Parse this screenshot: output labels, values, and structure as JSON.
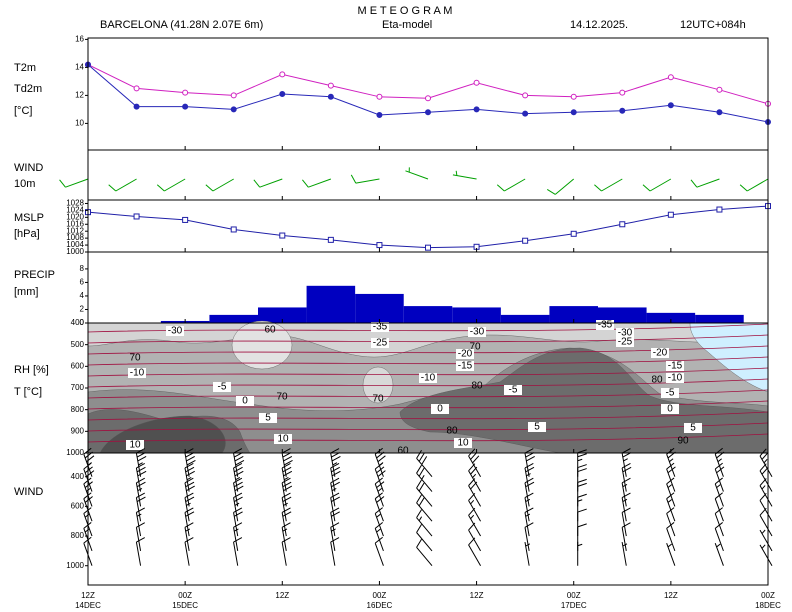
{
  "header": {
    "title": "M E T E O G R A M",
    "station": "BARCELONA (41.28N 2.07E  6m)",
    "model": "Eta-model",
    "date": "14.12.2025.",
    "run": "12UTC+084h"
  },
  "time_axis": {
    "xlim": [
      0,
      84
    ],
    "xticks": [
      {
        "value": 0,
        "label": "12Z"
      },
      {
        "value": 12,
        "label": "00Z"
      },
      {
        "value": 24,
        "label": "12Z"
      },
      {
        "value": 36,
        "label": "00Z"
      },
      {
        "value": 48,
        "label": "12Z"
      },
      {
        "value": 60,
        "label": "00Z"
      },
      {
        "value": 72,
        "label": "12Z"
      },
      {
        "value": 84,
        "label": "00Z"
      }
    ],
    "dates": [
      "14DEC",
      "15DEC",
      null,
      "16DEC",
      null,
      "17DEC",
      null,
      "18DEC"
    ]
  },
  "chart_data": [
    {
      "type": "line",
      "unit": "[°C]",
      "x": [
        0,
        6,
        12,
        18,
        24,
        30,
        36,
        42,
        48,
        54,
        60,
        66,
        72,
        78,
        84
      ],
      "series": [
        {
          "name": "T2m",
          "color": "#d020c0",
          "marker": "circle-open",
          "values": [
            14.2,
            12.5,
            12.2,
            12.0,
            13.5,
            12.7,
            11.9,
            11.8,
            12.9,
            12.0,
            11.9,
            12.2,
            13.3,
            12.4,
            11.4
          ]
        },
        {
          "name": "Td2m",
          "color": "#2828b8",
          "marker": "circle",
          "values": [
            14.2,
            11.2,
            11.2,
            11.0,
            12.1,
            11.9,
            10.6,
            10.8,
            11.0,
            10.7,
            10.8,
            10.9,
            11.3,
            10.8,
            10.1
          ]
        }
      ],
      "ylim": [
        8.1,
        16.1
      ],
      "yticks": [
        10,
        12,
        14,
        16
      ]
    },
    {
      "type": "barbs",
      "title": "WIND",
      "subtitle": "10m",
      "color": "#00a000",
      "x": [
        0,
        6,
        12,
        18,
        24,
        30,
        36,
        42,
        48,
        54,
        60,
        66,
        72,
        78,
        84
      ],
      "direction": [
        250,
        240,
        240,
        240,
        250,
        250,
        260,
        290,
        280,
        240,
        230,
        240,
        240,
        250,
        240
      ],
      "speed": [
        10,
        10,
        10,
        10,
        10,
        10,
        10,
        5,
        5,
        10,
        10,
        10,
        10,
        10,
        10
      ]
    },
    {
      "type": "line",
      "unit": "[hPa]",
      "x": [
        0,
        6,
        12,
        18,
        24,
        30,
        36,
        42,
        48,
        54,
        60,
        66,
        72,
        78,
        84
      ],
      "series": [
        {
          "name": "MSLP",
          "color": "#2020a8",
          "marker": "square-open",
          "values": [
            1023,
            1020.5,
            1018.5,
            1013,
            1009.5,
            1007,
            1004,
            1002.5,
            1003,
            1006.5,
            1010.5,
            1016,
            1021.5,
            1024.5,
            1026.5
          ]
        }
      ],
      "ylim": [
        1000,
        1030
      ],
      "yticks": [
        1000,
        1004,
        1008,
        1012,
        1016,
        1020,
        1024,
        1028
      ]
    },
    {
      "type": "histogram",
      "title": "PRECIP",
      "unit": "[mm]",
      "color": "#0000c0",
      "bins": [
        9,
        15,
        21,
        27,
        33,
        39,
        45,
        51,
        57,
        63,
        69,
        75,
        81
      ],
      "values": [
        0.3,
        1.2,
        2.3,
        5.5,
        4.3,
        2.5,
        2.3,
        1.2,
        2.5,
        2.3,
        1.5,
        1.2
      ],
      "ylim": [
        0,
        10.5
      ],
      "yticks": [
        0,
        2,
        4,
        6,
        8
      ]
    },
    {
      "type": "contour",
      "title": "RH [%]",
      "subtitle": "T [°C]",
      "ylim": [
        1000,
        400
      ],
      "yticks": [
        400,
        500,
        600,
        700,
        800,
        900,
        1000
      ],
      "rh_labels": [
        60,
        70,
        70,
        80,
        70,
        70,
        80,
        60,
        80,
        90
      ],
      "t_labels": [
        -30,
        -35,
        -30,
        -25,
        -20,
        -15,
        -10,
        -10,
        -5,
        -5,
        0,
        0,
        5,
        5,
        10,
        10,
        10,
        -30,
        -25,
        -20,
        -15,
        -10,
        -5,
        0,
        5,
        -35
      ]
    },
    {
      "type": "barbs",
      "title": "WIND",
      "color": "#000000",
      "x": [
        0,
        6,
        12,
        18,
        24,
        30,
        36,
        42,
        48,
        54,
        60,
        66,
        72,
        78,
        84
      ],
      "levels": [
        400,
        500,
        600,
        700,
        800,
        900,
        1000
      ],
      "direction": [
        340,
        350,
        350,
        350,
        350,
        350,
        340,
        320,
        330,
        350,
        0,
        350,
        340,
        340,
        330
      ],
      "speed": [
        [
          35,
          30,
          25,
          20,
          15,
          15,
          10
        ],
        [
          35,
          30,
          25,
          20,
          15,
          10,
          10
        ],
        [
          40,
          35,
          30,
          25,
          20,
          15,
          10
        ],
        [
          40,
          35,
          30,
          25,
          20,
          15,
          10
        ],
        [
          40,
          35,
          30,
          25,
          20,
          15,
          10
        ],
        [
          35,
          30,
          25,
          20,
          20,
          15,
          10
        ],
        [
          35,
          30,
          25,
          20,
          15,
          15,
          10
        ],
        [
          30,
          25,
          20,
          20,
          15,
          10,
          10
        ],
        [
          30,
          25,
          20,
          15,
          15,
          10,
          10
        ],
        [
          30,
          25,
          20,
          15,
          15,
          10,
          5
        ],
        [
          25,
          20,
          20,
          15,
          10,
          10,
          5
        ],
        [
          25,
          20,
          15,
          15,
          10,
          10,
          5
        ],
        [
          25,
          20,
          15,
          15,
          10,
          10,
          5
        ],
        [
          25,
          20,
          15,
          10,
          10,
          10,
          5
        ],
        [
          25,
          20,
          15,
          10,
          10,
          5,
          5
        ]
      ],
      "ylim": [
        1130,
        240
      ],
      "yticks": [
        400,
        600,
        800,
        1000
      ]
    }
  ]
}
